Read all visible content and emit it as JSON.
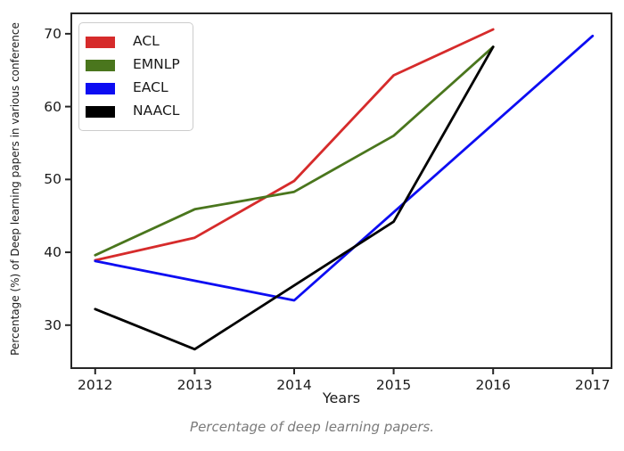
{
  "caption": "Percentage of deep learning papers.",
  "chart_data": {
    "type": "line",
    "title": "",
    "xlabel": "Years",
    "ylabel": "Percentage (%) of Deep learning papers in various conference",
    "xlim": [
      2011.76,
      2017.19
    ],
    "ylim": [
      24.1,
      72.8
    ],
    "xticks": [
      2012,
      2013,
      2014,
      2015,
      2016,
      2017
    ],
    "yticks": [
      30,
      40,
      50,
      60,
      70
    ],
    "grid": false,
    "legend_position": "upper-left",
    "series": [
      {
        "name": "ACL",
        "color": "#d62b2b",
        "x": [
          2012,
          2013,
          2014,
          2015,
          2016
        ],
        "y": [
          38.9,
          42.0,
          49.8,
          64.3,
          70.6
        ]
      },
      {
        "name": "EMNLP",
        "color": "#4a761d",
        "x": [
          2012,
          2013,
          2014,
          2015,
          2016
        ],
        "y": [
          39.6,
          45.9,
          48.3,
          56.0,
          68.2
        ]
      },
      {
        "name": "EACL",
        "color": "#0d0df2",
        "x": [
          2012,
          2014,
          2017
        ],
        "y": [
          38.8,
          33.4,
          69.7
        ]
      },
      {
        "name": "NAACL",
        "color": "#000000",
        "x": [
          2012,
          2013,
          2015,
          2016
        ],
        "y": [
          32.2,
          26.7,
          44.2,
          68.2
        ]
      }
    ]
  }
}
